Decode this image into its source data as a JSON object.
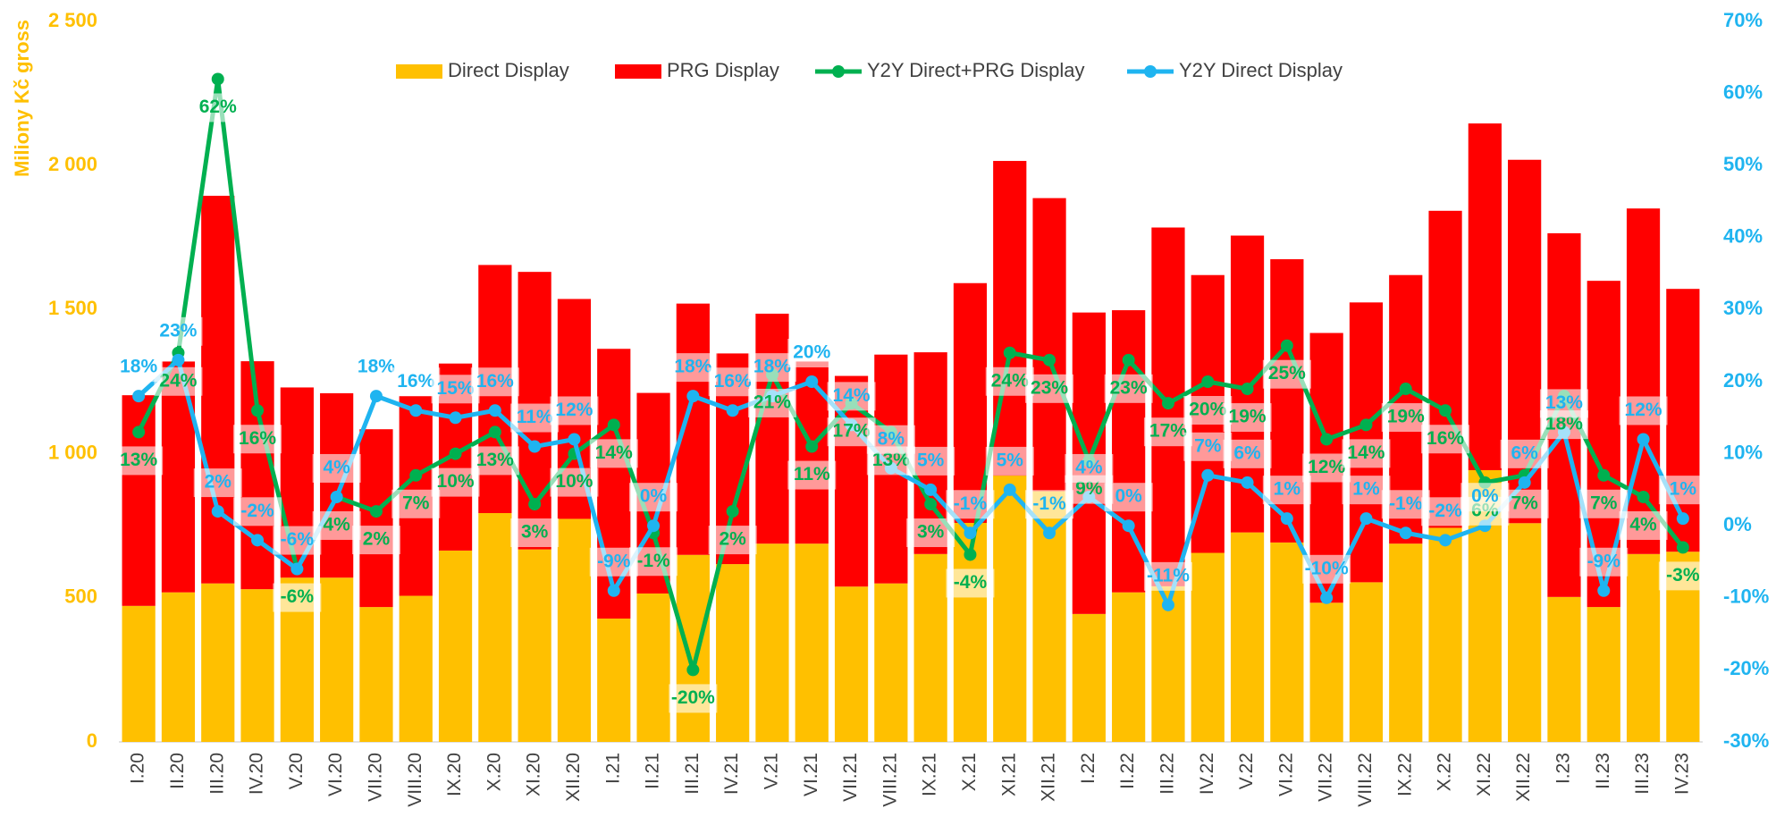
{
  "chart_data": {
    "type": "bar_line_combo",
    "categories": [
      "I.20",
      "II.20",
      "III.20",
      "IV.20",
      "V.20",
      "VI.20",
      "VII.20",
      "VIII.20",
      "IX.20",
      "X.20",
      "XI.20",
      "XII.20",
      "I.21",
      "II.21",
      "III.21",
      "IV.21",
      "V.21",
      "VI.21",
      "VII.21",
      "VIII.21",
      "IX.21",
      "X.21",
      "XI.21",
      "XII.21",
      "I.22",
      "II.22",
      "III.22",
      "IV.22",
      "V.22",
      "VI.22",
      "VII.22",
      "VIII.22",
      "IX.22",
      "X.22",
      "XI.22",
      "XII.22",
      "I.23",
      "II.23",
      "III.23",
      "IV.23"
    ],
    "ylabel": "Miliony Kč gross",
    "ylim": [
      0,
      2500
    ],
    "yticks": [
      0,
      500,
      {
        "value": 1000,
        "label": "1 000"
      },
      {
        "value": 1500,
        "label": "1 500"
      },
      {
        "value": 2000,
        "label": "2 000"
      },
      {
        "value": 2500,
        "label": "2 500"
      }
    ],
    "y2lim": [
      -30,
      70
    ],
    "y2ticks": [
      {
        "value": -30,
        "label": "-30%"
      },
      {
        "value": -20,
        "label": "-20%"
      },
      {
        "value": -10,
        "label": "-10%"
      },
      {
        "value": 0,
        "label": "0%"
      },
      {
        "value": 10,
        "label": "10%"
      },
      {
        "value": 20,
        "label": "20%"
      },
      {
        "value": 30,
        "label": "30%"
      },
      {
        "value": 40,
        "label": "40%"
      },
      {
        "value": 50,
        "label": "50%"
      },
      {
        "value": 60,
        "label": "60%"
      },
      {
        "value": 70,
        "label": "70%"
      }
    ],
    "legend": "top",
    "series": [
      {
        "name": "Direct Display",
        "type": "bar",
        "color": "#ffc000",
        "values": [
          472,
          519,
          550,
          530,
          570,
          570,
          468,
          507,
          664,
          794,
          668,
          774,
          428,
          515,
          649,
          617,
          688,
          688,
          539,
          550,
          652,
          760,
          924,
          870,
          444,
          519,
          540,
          656,
          727,
          692,
          483,
          554,
          688,
          743,
          943,
          759,
          503,
          468,
          652,
          660
        ]
      },
      {
        "name": "PRG Display",
        "type": "bar",
        "color": "#ff0000",
        "values": [
          731,
          801,
          1345,
          791,
          660,
          640,
          617,
          693,
          649,
          861,
          963,
          763,
          936,
          696,
          872,
          731,
          798,
          632,
          731,
          794,
          700,
          832,
          1092,
          1017,
          1046,
          979,
          1245,
          964,
          1030,
          983,
          936,
          971,
          932,
          1100,
          1203,
          1261,
          1262,
          1132,
          1199,
          912
        ]
      },
      {
        "name": "Y2Y Direct+PRG Display",
        "type": "line",
        "axis": "y2",
        "color": "#00b050",
        "values": [
          13,
          24,
          62,
          16,
          -6,
          4,
          2,
          7,
          10,
          13,
          3,
          10,
          14,
          -1,
          -20,
          2,
          21,
          11,
          17,
          13,
          3,
          -4,
          24,
          23,
          9,
          23,
          17,
          20,
          19,
          25,
          12,
          14,
          19,
          16,
          6,
          7,
          18,
          7,
          4,
          -3
        ],
        "value_labels": [
          "13%",
          "24%",
          "62%",
          "16%",
          "-6%",
          "4%",
          "2%",
          "7%",
          "10%",
          "13%",
          "3%",
          "10%",
          "14%",
          "-1%",
          "-20%",
          "2%",
          "21%",
          "11%",
          "17%",
          "13%",
          "3%",
          "-4%",
          "24%",
          "23%",
          "9%",
          "23%",
          "17%",
          "20%",
          "19%",
          "25%",
          "12%",
          "14%",
          "19%",
          "16%",
          "6%",
          "7%",
          "18%",
          "7%",
          "4%",
          "-3%"
        ]
      },
      {
        "name": "Y2Y Direct Display",
        "type": "line",
        "axis": "y2",
        "color": "#1fb4f0",
        "values": [
          18,
          23,
          2,
          -2,
          -6,
          4,
          18,
          16,
          15,
          16,
          11,
          12,
          -9,
          0,
          18,
          16,
          18,
          20,
          14,
          8,
          5,
          -1,
          5,
          -1,
          4,
          0,
          -11,
          7,
          6,
          1,
          -10,
          1,
          -1,
          -2,
          0,
          6,
          13,
          -9,
          12,
          1
        ],
        "value_labels": [
          "18%",
          "23%",
          "2%",
          "-2%",
          "-6%",
          "4%",
          "18%",
          "16%",
          "15%",
          "16%",
          "11%",
          "12%",
          "-9%",
          "0%",
          "18%",
          "16%",
          "18%",
          "20%",
          "14%",
          "8%",
          "5%",
          "-1%",
          "5%",
          "-1%",
          "4%",
          "0%",
          "-11%",
          "7%",
          "6%",
          "1%",
          "-10%",
          "1%",
          "-1%",
          "-2%",
          "0%",
          "6%",
          "13%",
          "-9%",
          "12%",
          "1%"
        ]
      }
    ]
  }
}
